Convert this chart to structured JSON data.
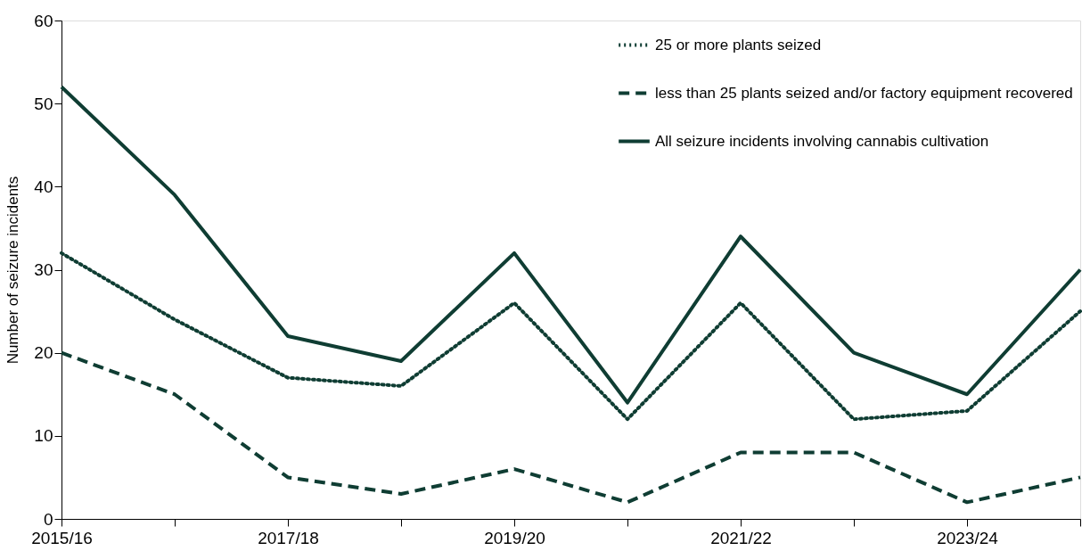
{
  "chart_data": {
    "type": "line",
    "ylabel": "Number of seizure incidents",
    "categories": [
      "2015/16",
      null,
      "2017/18",
      null,
      "2019/20",
      null,
      "2021/22",
      null,
      "2023/24",
      null
    ],
    "series": [
      {
        "name": "25 or more plants seized",
        "color": "#0f3d33",
        "line_style": "dotted",
        "values": [
          32,
          24,
          17,
          16,
          26,
          12,
          26,
          12,
          13,
          25
        ]
      },
      {
        "name": "less than 25 plants seized and/or factory equipment recovered",
        "color": "#0f3d33",
        "line_style": "dashed",
        "values": [
          20,
          15,
          5,
          3,
          6,
          2,
          8,
          8,
          2,
          5
        ]
      },
      {
        "name": "All seizure incidents involving cannabis cultivation",
        "color": "#0f3d33",
        "line_style": "solid",
        "values": [
          52,
          39,
          22,
          19,
          32,
          14,
          34,
          20,
          15,
          30
        ]
      }
    ],
    "ylim": [
      0,
      60
    ],
    "yticks": [
      0,
      10,
      20,
      30,
      40,
      50,
      60
    ],
    "grid": false,
    "legend": "top right",
    "marker": "none"
  }
}
